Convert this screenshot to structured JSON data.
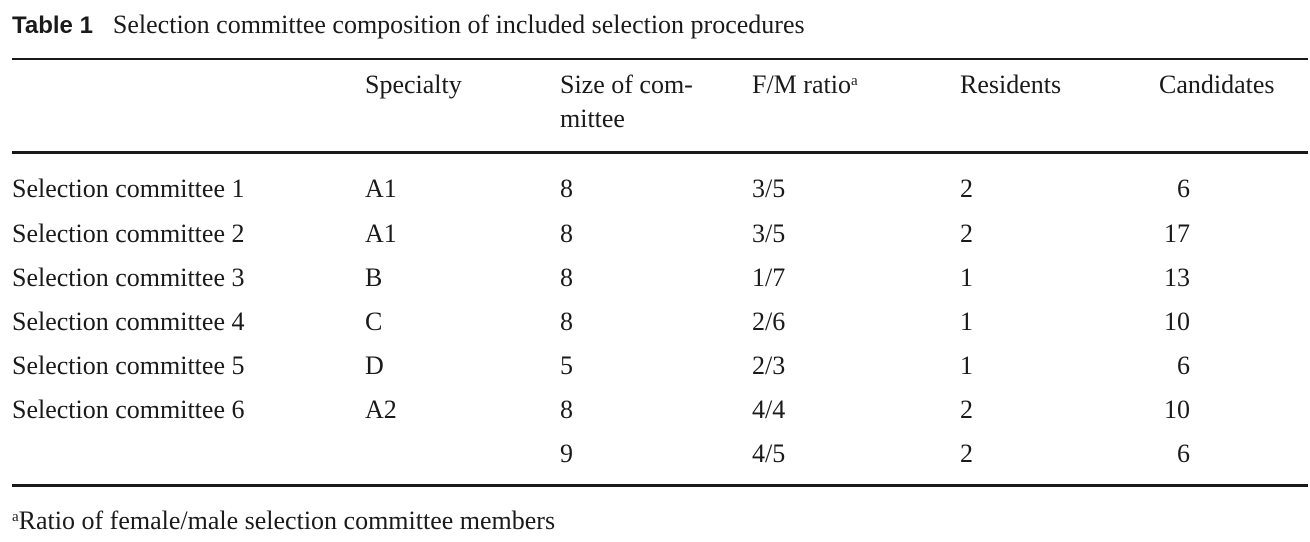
{
  "caption": {
    "label": "Table 1",
    "text": "Selection committee composition of included selection procedures"
  },
  "headers": {
    "specialty": "Specialty",
    "size_line1": "Size of com-",
    "size_line2": "mittee",
    "ratio": "F/M ratio",
    "ratio_marker": "a",
    "residents": "Residents",
    "candidates": "Candidates"
  },
  "rows": [
    {
      "committee": "Selection committee 1",
      "specialty": "A1",
      "size": "8",
      "ratio": "3/5",
      "residents": "2",
      "candidates": "6"
    },
    {
      "committee": "Selection committee 2",
      "specialty": "A1",
      "size": "8",
      "ratio": "3/5",
      "residents": "2",
      "candidates": "17"
    },
    {
      "committee": "Selection committee 3",
      "specialty": "B",
      "size": "8",
      "ratio": "1/7",
      "residents": "1",
      "candidates": "13"
    },
    {
      "committee": "Selection committee 4",
      "specialty": "C",
      "size": "8",
      "ratio": "2/6",
      "residents": "1",
      "candidates": "10"
    },
    {
      "committee": "Selection committee 5",
      "specialty": "D",
      "size": "5",
      "ratio": "2/3",
      "residents": "1",
      "candidates": "6"
    },
    {
      "committee": "Selection committee 6",
      "specialty": "A2",
      "size": "8",
      "ratio": "4/4",
      "residents": "2",
      "candidates": "10"
    },
    {
      "committee": "",
      "specialty": "",
      "size": "9",
      "ratio": "4/5",
      "residents": "2",
      "candidates": "6"
    }
  ],
  "footnote": {
    "marker": "a",
    "text": "Ratio of female/male selection committee members"
  }
}
